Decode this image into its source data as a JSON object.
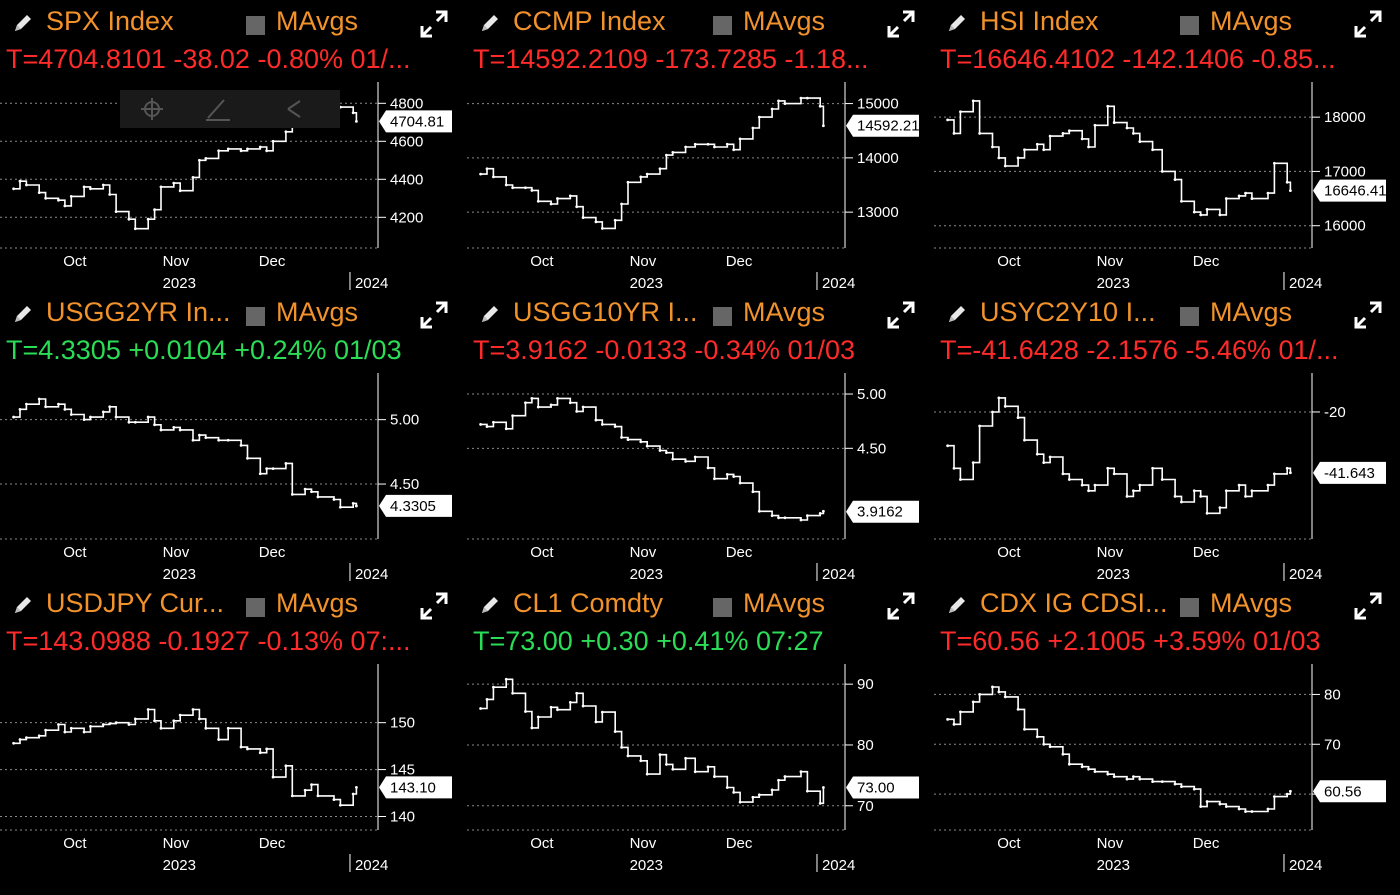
{
  "colors": {
    "ticker": "#f2922b",
    "negative": "#ff2a2a",
    "positive": "#2bdc57",
    "background": "#000000"
  },
  "icons": {
    "edit": "pencil-icon",
    "toggle": "checkbox-square-icon",
    "expand": "expand-arrows-icon"
  },
  "common": {
    "mavgs_label": "MAvgs"
  },
  "chart_data": [
    {
      "type": "line",
      "ticker": "SPX Index",
      "quote": "T=4704.8101 -38.02 -0.80% 01/...",
      "quote_sign": "negative",
      "last_label": "4704.81",
      "last_value": 4704.81,
      "y_ticks": [
        4800,
        4600,
        4400,
        4200
      ],
      "y_tick_labels": [
        "4800",
        "4600",
        "4400",
        "4200"
      ],
      "ylim": [
        4070,
        4870
      ],
      "months": [
        "Oct",
        "Nov",
        "Dec"
      ],
      "year_labels": [
        "2023",
        "2024"
      ],
      "x": [
        "09-18",
        "09-20",
        "09-22",
        "09-26",
        "09-28",
        "10-02",
        "10-04",
        "10-06",
        "10-10",
        "10-12",
        "10-16",
        "10-18",
        "10-20",
        "10-24",
        "10-26",
        "10-30",
        "11-01",
        "11-03",
        "11-07",
        "11-09",
        "11-13",
        "11-15",
        "11-17",
        "11-21",
        "11-24",
        "11-28",
        "11-30",
        "12-04",
        "12-06",
        "12-08",
        "12-12",
        "12-14",
        "12-18",
        "12-20",
        "12-22",
        "12-27",
        "12-29",
        "01-02",
        "01-03"
      ],
      "values": [
        4350,
        4390,
        4370,
        4330,
        4300,
        4290,
        4260,
        4310,
        4360,
        4350,
        4370,
        4320,
        4230,
        4190,
        4140,
        4190,
        4240,
        4360,
        4380,
        4340,
        4410,
        4500,
        4510,
        4550,
        4560,
        4550,
        4560,
        4570,
        4550,
        4600,
        4650,
        4720,
        4740,
        4770,
        4760,
        4780,
        4780,
        4750,
        4705
      ]
    },
    {
      "type": "line",
      "ticker": "CCMP Index",
      "quote": "T=14592.2109 -173.7285 -1.18...",
      "quote_sign": "negative",
      "last_label": "14592.21",
      "last_value": 14592.21,
      "y_ticks": [
        15000,
        14000,
        13000
      ],
      "y_tick_labels": [
        "15000",
        "14000",
        "13000"
      ],
      "ylim": [
        12450,
        15250
      ],
      "months": [
        "Oct",
        "Nov",
        "Dec"
      ],
      "year_labels": [
        "2023",
        "2024"
      ],
      "x": [
        "09-18",
        "09-20",
        "09-22",
        "09-26",
        "09-28",
        "10-02",
        "10-04",
        "10-06",
        "10-10",
        "10-12",
        "10-16",
        "10-18",
        "10-20",
        "10-24",
        "10-26",
        "10-30",
        "11-01",
        "11-03",
        "11-07",
        "11-09",
        "11-13",
        "11-15",
        "11-17",
        "11-21",
        "11-24",
        "11-28",
        "11-30",
        "12-04",
        "12-06",
        "12-08",
        "12-12",
        "12-14",
        "12-18",
        "12-20",
        "12-22",
        "12-27",
        "12-29",
        "01-02",
        "01-03"
      ],
      "values": [
        13700,
        13800,
        13650,
        13500,
        13450,
        13450,
        13400,
        13200,
        13150,
        13250,
        13300,
        13100,
        12900,
        12820,
        12700,
        12850,
        13150,
        13550,
        13650,
        13700,
        13800,
        14050,
        14100,
        14200,
        14250,
        14250,
        14200,
        14250,
        14150,
        14350,
        14550,
        14750,
        14900,
        15050,
        15000,
        15100,
        15100,
        14950,
        14592
      ]
    },
    {
      "type": "line",
      "ticker": "HSI Index",
      "quote": "T=16646.4102 -142.1406 -0.85...",
      "quote_sign": "negative",
      "last_label": "16646.41",
      "last_value": 16646.41,
      "y_ticks": [
        18000,
        17000,
        16000
      ],
      "y_tick_labels": [
        "18000",
        "17000",
        "16000"
      ],
      "ylim": [
        15700,
        18500
      ],
      "months": [
        "Oct",
        "Nov",
        "Dec"
      ],
      "year_labels": [
        "2023",
        "2024"
      ],
      "x": [
        "09-18",
        "09-20",
        "09-22",
        "09-26",
        "09-28",
        "10-02",
        "10-04",
        "10-06",
        "10-10",
        "10-12",
        "10-16",
        "10-18",
        "10-20",
        "10-24",
        "10-26",
        "10-30",
        "11-01",
        "11-03",
        "11-07",
        "11-09",
        "11-13",
        "11-15",
        "11-17",
        "11-21",
        "11-24",
        "11-28",
        "11-30",
        "12-04",
        "12-06",
        "12-08",
        "12-12",
        "12-14",
        "12-18",
        "12-20",
        "12-22",
        "12-27",
        "12-29",
        "01-02",
        "01-03"
      ],
      "values": [
        17950,
        17700,
        18100,
        18300,
        17700,
        17450,
        17250,
        17100,
        17250,
        17400,
        17500,
        17400,
        17650,
        17700,
        17750,
        17600,
        17450,
        17850,
        18200,
        17900,
        17800,
        17700,
        17550,
        17400,
        17000,
        16850,
        16450,
        16250,
        16200,
        16300,
        16200,
        16500,
        16550,
        16600,
        16500,
        16600,
        17150,
        16800,
        16646
      ]
    },
    {
      "type": "line",
      "ticker": "USGG2YR In...",
      "quote": "T=4.3305 +0.0104 +0.24% 01/03",
      "quote_sign": "positive",
      "last_label": "4.3305",
      "last_value": 4.3305,
      "y_ticks": [
        5.0,
        4.5
      ],
      "y_tick_labels": [
        "5.00",
        "4.50"
      ],
      "ylim": [
        4.12,
        5.3
      ],
      "months": [
        "Oct",
        "Nov",
        "Dec"
      ],
      "year_labels": [
        "2023",
        "2024"
      ],
      "x": [
        "09-18",
        "09-20",
        "09-22",
        "09-26",
        "09-28",
        "10-02",
        "10-04",
        "10-06",
        "10-10",
        "10-12",
        "10-16",
        "10-18",
        "10-20",
        "10-24",
        "10-26",
        "10-30",
        "11-01",
        "11-03",
        "11-07",
        "11-09",
        "11-13",
        "11-15",
        "11-17",
        "11-21",
        "11-24",
        "11-28",
        "11-30",
        "12-04",
        "12-06",
        "12-08",
        "12-12",
        "12-14",
        "12-18",
        "12-20",
        "12-22",
        "12-27",
        "12-29",
        "01-02",
        "01-03"
      ],
      "values": [
        5.02,
        5.08,
        5.12,
        5.16,
        5.1,
        5.12,
        5.08,
        5.04,
        5.0,
        5.02,
        5.06,
        5.1,
        5.02,
        4.98,
        4.98,
        5.02,
        4.96,
        4.92,
        4.94,
        4.92,
        4.84,
        4.88,
        4.86,
        4.84,
        4.84,
        4.8,
        4.7,
        4.58,
        4.62,
        4.62,
        4.66,
        4.42,
        4.46,
        4.44,
        4.4,
        4.38,
        4.32,
        4.35,
        4.33
      ]
    },
    {
      "type": "line",
      "ticker": "USGG10YR I...",
      "quote": "T=3.9162 -0.0133 -0.34% 01/03",
      "quote_sign": "negative",
      "last_label": "3.9162",
      "last_value": 3.9162,
      "y_ticks": [
        5.0,
        4.5
      ],
      "y_tick_labels": [
        "5.00",
        "4.50"
      ],
      "ylim": [
        3.72,
        5.12
      ],
      "months": [
        "Oct",
        "Nov",
        "Dec"
      ],
      "year_labels": [
        "2023",
        "2024"
      ],
      "x": [
        "09-18",
        "09-20",
        "09-22",
        "09-26",
        "09-28",
        "10-02",
        "10-04",
        "10-06",
        "10-10",
        "10-12",
        "10-16",
        "10-18",
        "10-20",
        "10-24",
        "10-26",
        "10-30",
        "11-01",
        "11-03",
        "11-07",
        "11-09",
        "11-13",
        "11-15",
        "11-17",
        "11-21",
        "11-24",
        "11-28",
        "11-30",
        "12-04",
        "12-06",
        "12-08",
        "12-12",
        "12-14",
        "12-18",
        "12-20",
        "12-22",
        "12-27",
        "12-29",
        "01-02",
        "01-03"
      ],
      "values": [
        4.72,
        4.7,
        4.74,
        4.68,
        4.8,
        4.92,
        4.96,
        4.88,
        4.9,
        4.96,
        4.92,
        4.84,
        4.88,
        4.76,
        4.72,
        4.7,
        4.6,
        4.58,
        4.56,
        4.52,
        4.48,
        4.46,
        4.4,
        4.38,
        4.42,
        4.32,
        4.22,
        4.26,
        4.24,
        4.18,
        4.1,
        3.92,
        3.88,
        3.86,
        3.86,
        3.84,
        3.88,
        3.9,
        3.92
      ]
    },
    {
      "type": "line",
      "ticker": "USYC2Y10 I...",
      "quote": "T=-41.6428 -2.1576 -5.46% 01/...",
      "quote_sign": "negative",
      "last_label": "-41.643",
      "last_value": -41.643,
      "y_ticks": [
        -20
      ],
      "y_tick_labels": [
        "-20"
      ],
      "ylim": [
        -63,
        -9
      ],
      "months": [
        "Oct",
        "Nov",
        "Dec"
      ],
      "year_labels": [
        "2023",
        "2024"
      ],
      "x": [
        "09-18",
        "09-20",
        "09-22",
        "09-26",
        "09-28",
        "10-02",
        "10-04",
        "10-06",
        "10-10",
        "10-12",
        "10-16",
        "10-18",
        "10-20",
        "10-24",
        "10-26",
        "10-30",
        "11-01",
        "11-03",
        "11-07",
        "11-09",
        "11-13",
        "11-15",
        "11-17",
        "11-21",
        "11-24",
        "11-28",
        "11-30",
        "12-04",
        "12-06",
        "12-08",
        "12-12",
        "12-14",
        "12-18",
        "12-20",
        "12-22",
        "12-27",
        "12-29",
        "01-02",
        "01-03"
      ],
      "values": [
        -32,
        -40,
        -44,
        -38,
        -25,
        -20,
        -15,
        -18,
        -22,
        -30,
        -35,
        -38,
        -36,
        -42,
        -44,
        -46,
        -48,
        -46,
        -40,
        -42,
        -50,
        -48,
        -46,
        -40,
        -44,
        -50,
        -52,
        -48,
        -50,
        -56,
        -54,
        -48,
        -46,
        -50,
        -48,
        -46,
        -42,
        -40,
        -41.6
      ]
    },
    {
      "type": "line",
      "ticker": "USDJPY Cur...",
      "quote": "T=143.0988 -0.1927 -0.13% 07:...",
      "quote_sign": "negative",
      "last_label": "143.10",
      "last_value": 143.1,
      "y_ticks": [
        150,
        145,
        140
      ],
      "y_tick_labels": [
        "150",
        "145",
        "140"
      ],
      "ylim": [
        139.2,
        155.4
      ],
      "months": [
        "Oct",
        "Nov",
        "Dec"
      ],
      "year_labels": [
        "2023",
        "2024"
      ],
      "x": [
        "09-18",
        "09-20",
        "09-22",
        "09-26",
        "09-28",
        "10-02",
        "10-04",
        "10-06",
        "10-10",
        "10-12",
        "10-16",
        "10-18",
        "10-20",
        "10-24",
        "10-26",
        "10-30",
        "11-01",
        "11-03",
        "11-07",
        "11-09",
        "11-13",
        "11-15",
        "11-17",
        "11-21",
        "11-24",
        "11-28",
        "11-30",
        "12-04",
        "12-06",
        "12-08",
        "12-12",
        "12-14",
        "12-18",
        "12-20",
        "12-22",
        "12-27",
        "12-29",
        "01-02",
        "01-03"
      ],
      "values": [
        147.8,
        148.2,
        148.4,
        148.6,
        149.2,
        149.8,
        149.0,
        149.4,
        149.0,
        149.6,
        149.8,
        149.9,
        150.0,
        149.8,
        150.4,
        151.4,
        150.2,
        149.4,
        150.2,
        150.8,
        151.4,
        150.4,
        149.4,
        148.2,
        149.4,
        147.4,
        147.2,
        146.8,
        147.2,
        144.2,
        145.4,
        142.2,
        142.8,
        143.4,
        142.2,
        141.8,
        141.2,
        142.4,
        143.1
      ]
    },
    {
      "type": "line",
      "ticker": "CL1 Comdty",
      "quote": "T=73.00 +0.30 +0.41% 07:27",
      "quote_sign": "positive",
      "last_label": "73.00",
      "last_value": 73.0,
      "y_ticks": [
        90,
        80,
        70
      ],
      "y_tick_labels": [
        "90",
        "80",
        "70"
      ],
      "ylim": [
        67.0,
        92.0
      ],
      "months": [
        "Oct",
        "Nov",
        "Dec"
      ],
      "year_labels": [
        "2023",
        "2024"
      ],
      "x": [
        "09-18",
        "09-20",
        "09-22",
        "09-26",
        "09-28",
        "10-02",
        "10-04",
        "10-06",
        "10-10",
        "10-12",
        "10-16",
        "10-18",
        "10-20",
        "10-24",
        "10-26",
        "10-30",
        "11-01",
        "11-03",
        "11-07",
        "11-09",
        "11-13",
        "11-15",
        "11-17",
        "11-21",
        "11-24",
        "11-28",
        "11-30",
        "12-04",
        "12-06",
        "12-08",
        "12-12",
        "12-14",
        "12-18",
        "12-20",
        "12-22",
        "12-27",
        "12-29",
        "01-02",
        "01-03"
      ],
      "values": [
        86.0,
        87.5,
        89.5,
        90.8,
        88.5,
        85.5,
        82.8,
        84.6,
        86.2,
        85.8,
        87.0,
        88.5,
        86.4,
        83.8,
        85.4,
        82.2,
        79.6,
        78.2,
        77.4,
        75.2,
        78.4,
        76.8,
        76.0,
        77.8,
        75.6,
        76.4,
        74.8,
        73.0,
        72.2,
        70.6,
        71.4,
        71.8,
        72.6,
        74.2,
        74.8,
        75.6,
        72.4,
        70.4,
        73.0
      ]
    },
    {
      "type": "line",
      "ticker": "CDX IG CDSI...",
      "quote": "T=60.56 +2.1005 +3.59% 01/03",
      "quote_sign": "negative",
      "last_label": "60.56",
      "last_value": 60.56,
      "y_ticks": [
        80,
        70,
        60
      ],
      "y_tick_labels": [
        "80",
        "70",
        "60"
      ],
      "ylim": [
        54.0,
        84.5
      ],
      "months": [
        "Oct",
        "Nov",
        "Dec"
      ],
      "year_labels": [
        "2023",
        "2024"
      ],
      "x": [
        "09-18",
        "09-20",
        "09-22",
        "09-26",
        "09-28",
        "10-02",
        "10-04",
        "10-06",
        "10-10",
        "10-12",
        "10-16",
        "10-18",
        "10-20",
        "10-24",
        "10-26",
        "10-30",
        "11-01",
        "11-03",
        "11-07",
        "11-09",
        "11-13",
        "11-15",
        "11-17",
        "11-21",
        "11-24",
        "11-28",
        "11-30",
        "12-04",
        "12-06",
        "12-08",
        "12-12",
        "12-14",
        "12-18",
        "12-20",
        "12-22",
        "12-27",
        "12-29",
        "01-02",
        "01-03"
      ],
      "values": [
        75.0,
        74.0,
        76.5,
        78.5,
        80.0,
        81.5,
        80.5,
        79.5,
        77.0,
        73.0,
        71.5,
        70.0,
        69.5,
        68.0,
        66.0,
        65.5,
        65.0,
        64.5,
        64.0,
        63.5,
        63.0,
        63.5,
        63.0,
        62.5,
        62.5,
        62.0,
        61.5,
        61.0,
        57.5,
        58.5,
        58.0,
        57.5,
        57.0,
        56.5,
        56.5,
        57.0,
        59.5,
        60.0,
        60.56
      ]
    }
  ]
}
